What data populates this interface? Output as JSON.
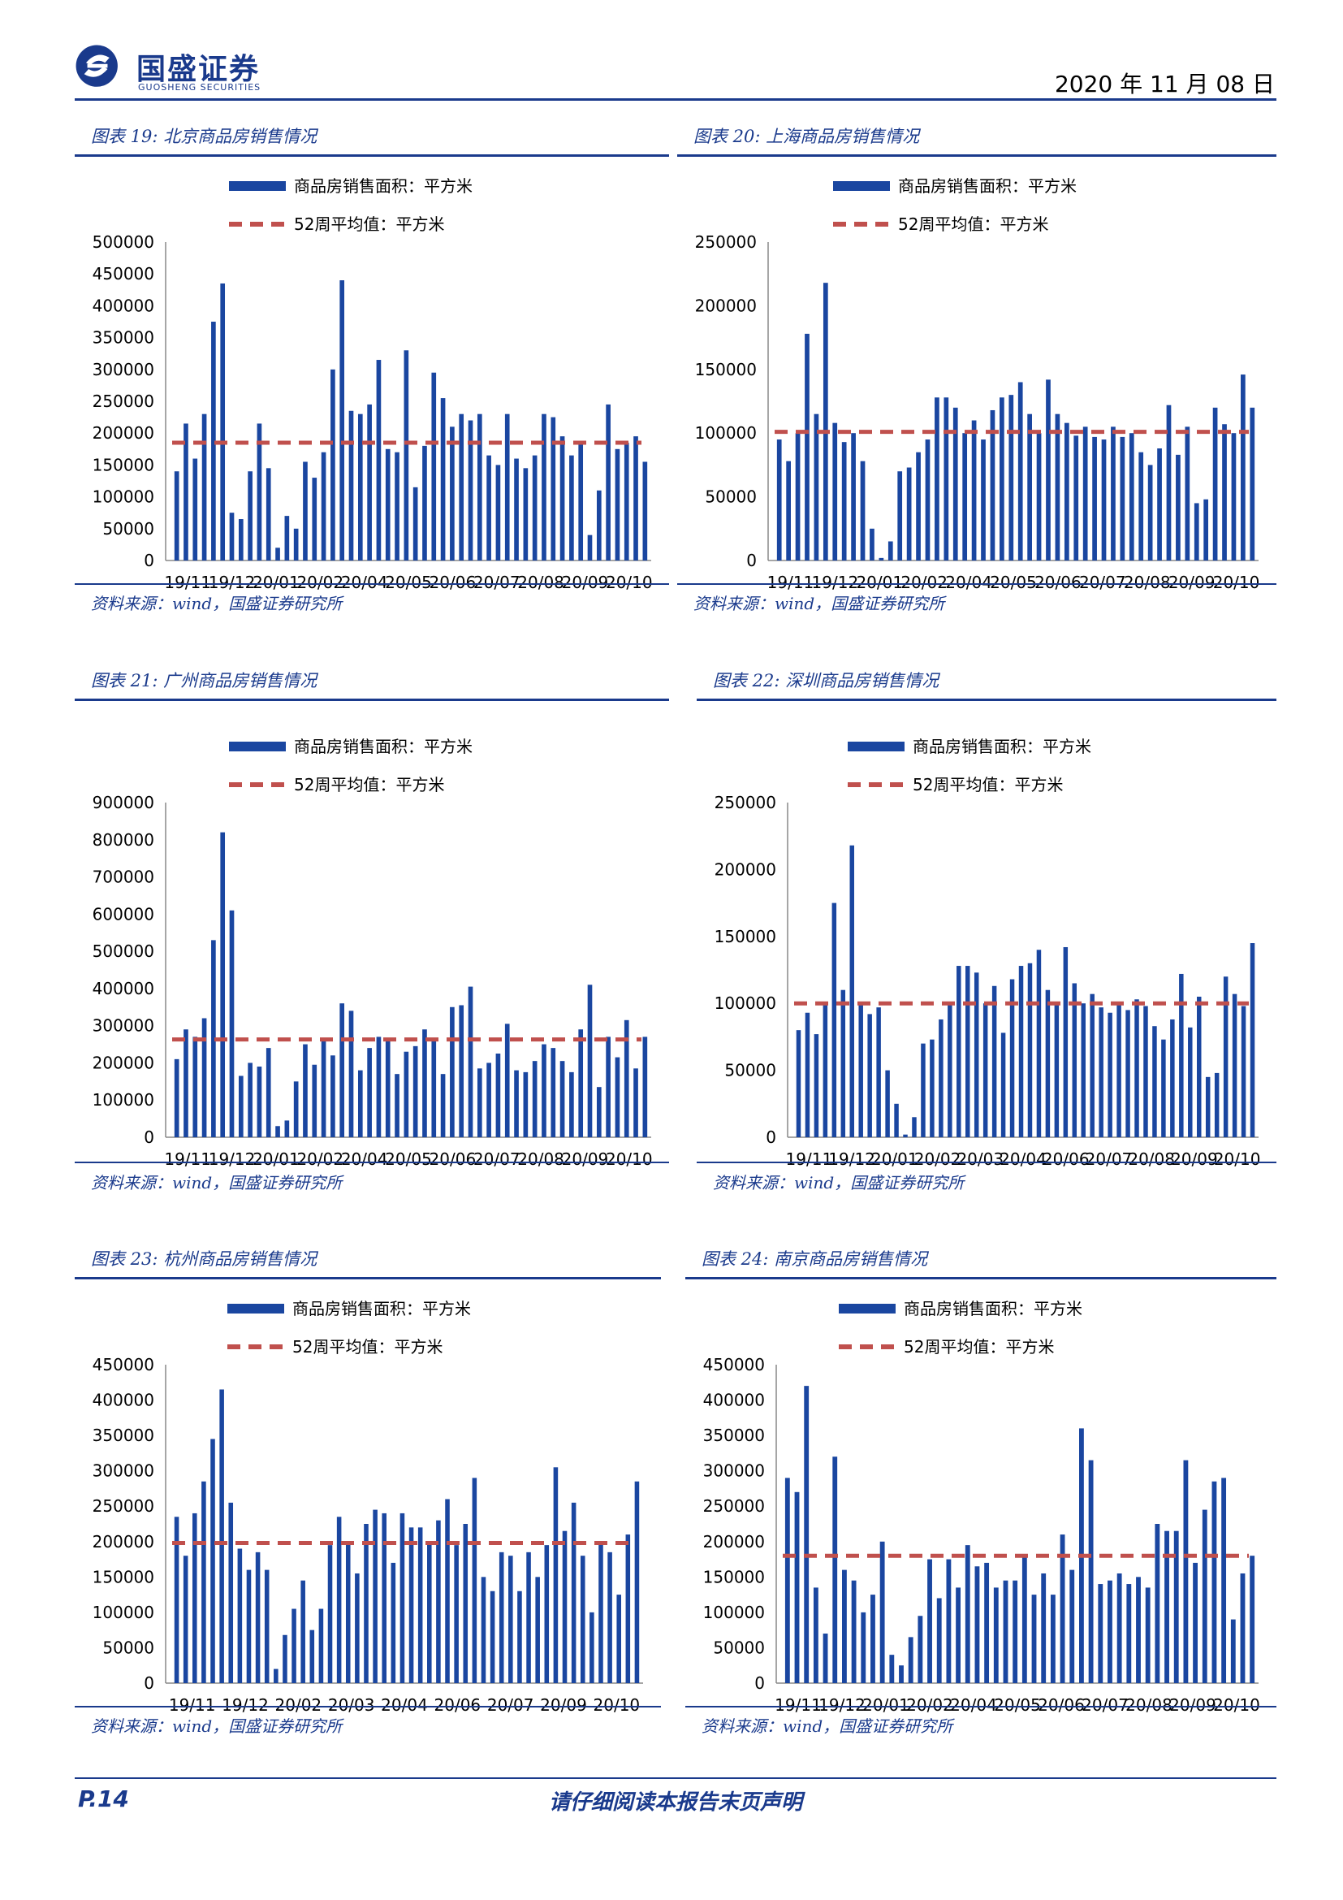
{
  "header": {
    "brand": "国盛证券",
    "brand_sub": "GUOSHENG SECURITIES",
    "date": "2020 年 11 月 08 日"
  },
  "footer": {
    "page": "P.14",
    "disclaimer": "请仔细阅读本报告末页声明"
  },
  "colors": {
    "accent": "#1a3a8c",
    "bar": "#1a46a0",
    "avg_line": "#c0504d"
  },
  "panels": [
    {
      "title": "图表 19:  北京商品房销售情况",
      "source": "资料来源：wind，国盛证券研究所",
      "chart_data": {
        "type": "bar",
        "legend": [
          "商品房销售面积：平方米",
          "52周平均值：平方米"
        ],
        "ylim": [
          0,
          500000
        ],
        "yticks": [
          0,
          50000,
          100000,
          150000,
          200000,
          250000,
          300000,
          350000,
          400000,
          450000,
          500000
        ],
        "xticks": [
          "19/11",
          "19/12",
          "20/01",
          "20/02",
          "20/04",
          "20/05",
          "20/06",
          "20/07",
          "20/08",
          "20/09",
          "20/10"
        ],
        "avg": 185000,
        "values": [
          140000,
          215000,
          160000,
          230000,
          375000,
          435000,
          75000,
          65000,
          140000,
          215000,
          145000,
          20000,
          70000,
          50000,
          155000,
          130000,
          170000,
          300000,
          440000,
          235000,
          230000,
          245000,
          315000,
          175000,
          170000,
          330000,
          115000,
          180000,
          295000,
          255000,
          210000,
          230000,
          220000,
          230000,
          165000,
          150000,
          230000,
          160000,
          145000,
          165000,
          230000,
          225000,
          195000,
          165000,
          185000,
          40000,
          110000,
          245000,
          175000,
          185000,
          195000,
          155000
        ]
      }
    },
    {
      "title": "图表 20:  上海商品房销售情况",
      "source": "资料来源：wind，国盛证券研究所",
      "chart_data": {
        "type": "bar",
        "legend": [
          "商品房销售面积：平方米",
          "52周平均值：平方米"
        ],
        "ylim": [
          0,
          250000
        ],
        "yticks": [
          0,
          50000,
          100000,
          150000,
          200000,
          250000
        ],
        "xticks": [
          "19/11",
          "19/12",
          "20/01",
          "20/02",
          "20/04",
          "20/05",
          "20/06",
          "20/07",
          "20/08",
          "20/09",
          "20/10"
        ],
        "avg": 101000,
        "values": [
          95000,
          78000,
          100000,
          178000,
          115000,
          218000,
          108000,
          93000,
          100000,
          78000,
          25000,
          2000,
          15000,
          70000,
          73000,
          85000,
          95000,
          128000,
          128000,
          120000,
          100000,
          110000,
          95000,
          118000,
          128000,
          130000,
          140000,
          115000,
          100000,
          142000,
          115000,
          108000,
          98000,
          105000,
          97000,
          95000,
          105000,
          97000,
          100000,
          85000,
          75000,
          88000,
          122000,
          83000,
          105000,
          45000,
          48000,
          120000,
          107000,
          100000,
          146000,
          120000
        ]
      }
    },
    {
      "title": "图表 21:  广州商品房销售情况",
      "source": "资料来源：wind，国盛证券研究所",
      "chart_data": {
        "type": "bar",
        "legend": [
          "商品房销售面积：平方米",
          "52周平均值：平方米"
        ],
        "ylim": [
          0,
          900000
        ],
        "yticks": [
          0,
          100000,
          200000,
          300000,
          400000,
          500000,
          600000,
          700000,
          800000,
          900000
        ],
        "xticks": [
          "19/11",
          "19/12",
          "20/01",
          "20/02",
          "20/04",
          "20/05",
          "20/06",
          "20/07",
          "20/08",
          "20/09",
          "20/10"
        ],
        "avg": 263000,
        "values": [
          210000,
          290000,
          270000,
          320000,
          530000,
          820000,
          610000,
          165000,
          200000,
          190000,
          240000,
          30000,
          45000,
          150000,
          250000,
          195000,
          260000,
          220000,
          360000,
          340000,
          180000,
          240000,
          270000,
          260000,
          170000,
          230000,
          245000,
          290000,
          260000,
          170000,
          350000,
          355000,
          405000,
          185000,
          200000,
          225000,
          305000,
          180000,
          175000,
          205000,
          250000,
          240000,
          205000,
          175000,
          290000,
          410000,
          135000,
          270000,
          215000,
          315000,
          185000,
          270000
        ]
      }
    },
    {
      "title": "图表 22:  深圳商品房销售情况",
      "source": "资料来源：wind，国盛证券研究所",
      "chart_data": {
        "type": "bar",
        "legend": [
          "商品房销售面积：平方米",
          "52周平均值：平方米"
        ],
        "ylim": [
          0,
          250000
        ],
        "yticks": [
          0,
          50000,
          100000,
          150000,
          200000,
          250000
        ],
        "xticks": [
          "19/11",
          "19/12",
          "20/01",
          "20/02",
          "20/03",
          "20/04",
          "20/06",
          "20/07",
          "20/08",
          "20/09",
          "20/10"
        ],
        "avg": 100000,
        "values": [
          80000,
          93000,
          77000,
          100000,
          175000,
          110000,
          218000,
          100000,
          92000,
          97000,
          50000,
          25000,
          2000,
          15000,
          70000,
          73000,
          88000,
          100000,
          128000,
          128000,
          123000,
          100000,
          113000,
          78000,
          118000,
          128000,
          130000,
          140000,
          110000,
          100000,
          142000,
          115000,
          100000,
          107000,
          97000,
          93000,
          100000,
          95000,
          103000,
          98000,
          83000,
          73000,
          88000,
          122000,
          82000,
          105000,
          45000,
          48000,
          120000,
          107000,
          98000,
          145000
        ]
      }
    },
    {
      "title": "图表 23:  杭州商品房销售情况",
      "source": "资料来源：wind，国盛证券研究所",
      "chart_data": {
        "type": "bar",
        "legend": [
          "商品房销售面积：平方米",
          "52周平均值：平方米"
        ],
        "ylim": [
          0,
          450000
        ],
        "yticks": [
          0,
          50000,
          100000,
          150000,
          200000,
          250000,
          300000,
          350000,
          400000,
          450000
        ],
        "xticks": [
          "19/11",
          "19/12",
          "20/02",
          "20/03",
          "20/04",
          "20/06",
          "20/07",
          "20/09",
          "20/10"
        ],
        "avg": 198000,
        "values": [
          235000,
          180000,
          240000,
          285000,
          345000,
          415000,
          255000,
          190000,
          160000,
          185000,
          160000,
          20000,
          68000,
          105000,
          145000,
          75000,
          105000,
          195000,
          235000,
          200000,
          155000,
          225000,
          245000,
          240000,
          170000,
          240000,
          220000,
          220000,
          200000,
          230000,
          260000,
          195000,
          225000,
          290000,
          150000,
          130000,
          185000,
          180000,
          130000,
          185000,
          150000,
          195000,
          305000,
          215000,
          255000,
          180000,
          100000,
          200000,
          185000,
          125000,
          210000,
          285000
        ]
      }
    },
    {
      "title": "图表 24:  南京商品房销售情况",
      "source": "资料来源：wind，国盛证券研究所",
      "chart_data": {
        "type": "bar",
        "legend": [
          "商品房销售面积：平方米",
          "52周平均值：平方米"
        ],
        "ylim": [
          0,
          450000
        ],
        "yticks": [
          0,
          50000,
          100000,
          150000,
          200000,
          250000,
          300000,
          350000,
          400000,
          450000
        ],
        "xticks": [
          "19/11",
          "19/12",
          "20/01",
          "20/02",
          "20/04",
          "20/05",
          "20/06",
          "20/07",
          "20/08",
          "20/09",
          "20/10"
        ],
        "avg": 180000,
        "values": [
          290000,
          270000,
          420000,
          135000,
          70000,
          320000,
          160000,
          145000,
          100000,
          125000,
          200000,
          40000,
          25000,
          65000,
          95000,
          175000,
          120000,
          175000,
          135000,
          195000,
          165000,
          170000,
          135000,
          145000,
          145000,
          180000,
          125000,
          155000,
          125000,
          210000,
          160000,
          360000,
          315000,
          140000,
          145000,
          155000,
          140000,
          150000,
          135000,
          225000,
          215000,
          215000,
          315000,
          170000,
          245000,
          285000,
          290000,
          90000,
          155000,
          180000
        ]
      }
    }
  ]
}
